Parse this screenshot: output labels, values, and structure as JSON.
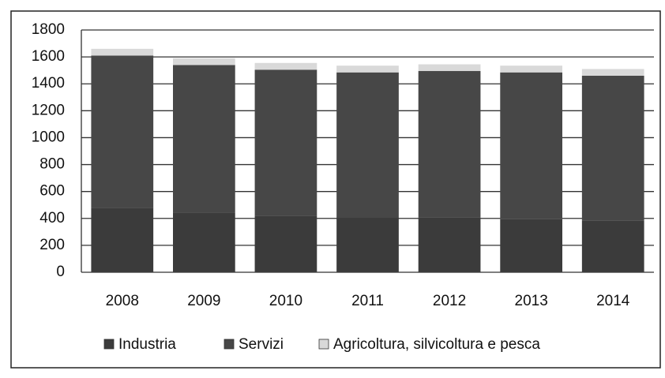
{
  "chart_data": {
    "type": "stacked_bar",
    "categories": [
      "2008",
      "2009",
      "2010",
      "2011",
      "2012",
      "2013",
      "2014"
    ],
    "series": [
      {
        "name": "Industria",
        "color": "#3b3b3b",
        "values": [
          480,
          440,
          420,
          410,
          405,
          395,
          385
        ]
      },
      {
        "name": "Servizi",
        "color": "#474747",
        "values": [
          1130,
          1100,
          1085,
          1075,
          1090,
          1090,
          1075
        ]
      },
      {
        "name": "Agricoltura, silvicoltura e pesca",
        "color": "#d9d9d9",
        "values": [
          50,
          50,
          50,
          50,
          50,
          50,
          50
        ]
      }
    ],
    "ylim": [
      0,
      1800
    ],
    "yticks": [
      0,
      200,
      400,
      600,
      800,
      1000,
      1200,
      1400,
      1600,
      1800
    ],
    "grid": true,
    "legend": "bottom"
  }
}
